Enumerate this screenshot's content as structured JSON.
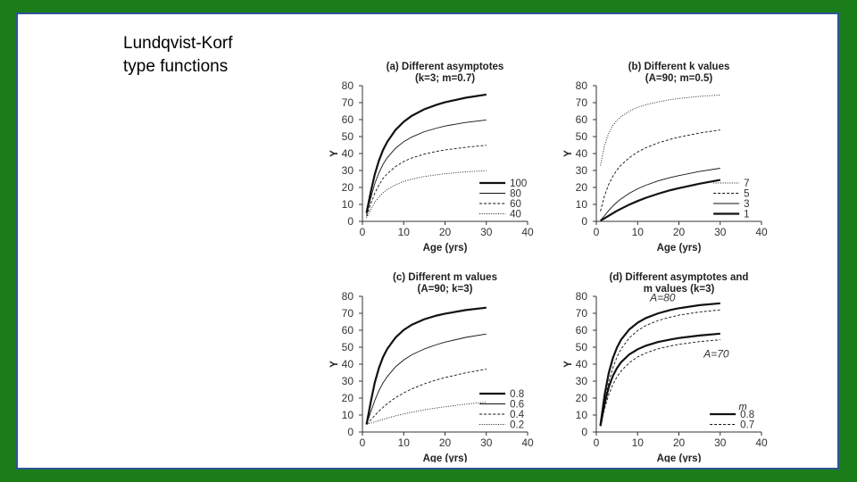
{
  "slide": {
    "title_line1": "Lundqvist-Korf",
    "title_line2": "type functions"
  },
  "chart_data": [
    {
      "type": "line",
      "title_line1": "(a) Different asymptotes",
      "title_line2": "(k=3; m=0.7)",
      "xlabel": "Age (yrs)",
      "ylabel": "Y",
      "xlim": [
        0,
        40
      ],
      "ylim": [
        0,
        80
      ],
      "x_ticks": [
        0,
        10,
        20,
        30,
        40
      ],
      "y_ticks": [
        0,
        10,
        20,
        30,
        40,
        50,
        60,
        70,
        80
      ],
      "grid": false,
      "legend_position": "bottom-right",
      "series": [
        {
          "name": "100",
          "style": "thick",
          "x": [
            1,
            2,
            3,
            4,
            5,
            6,
            8,
            10,
            12,
            15,
            18,
            20,
            25,
            30
          ],
          "y": [
            5,
            17.3,
            27.9,
            35.9,
            42.1,
            46.9,
            53.9,
            58.8,
            62.3,
            66.1,
            68.8,
            70.2,
            72.9,
            74.8
          ]
        },
        {
          "name": "80",
          "style": "solid",
          "x": [
            1,
            2,
            3,
            4,
            5,
            6,
            8,
            10,
            12,
            15,
            18,
            20,
            25,
            30
          ],
          "y": [
            4,
            13.8,
            22.3,
            28.7,
            33.7,
            37.5,
            43.1,
            47,
            49.8,
            52.9,
            55,
            56.2,
            58.3,
            59.8
          ]
        },
        {
          "name": "60",
          "style": "dashed",
          "x": [
            1,
            2,
            3,
            4,
            5,
            6,
            8,
            10,
            12,
            15,
            18,
            20,
            25,
            30
          ],
          "y": [
            3,
            10.4,
            16.7,
            21.5,
            25.3,
            28.1,
            32.3,
            35.3,
            37.4,
            39.7,
            41.3,
            42.1,
            43.7,
            44.9
          ]
        },
        {
          "name": "40",
          "style": "dotted",
          "x": [
            1,
            2,
            3,
            4,
            5,
            6,
            8,
            10,
            12,
            15,
            18,
            20,
            25,
            30
          ],
          "y": [
            2,
            6.9,
            11.2,
            14.4,
            16.9,
            18.8,
            21.6,
            23.5,
            24.9,
            26.5,
            27.5,
            28.1,
            29.2,
            29.9
          ]
        }
      ]
    },
    {
      "type": "line",
      "title_line1": "(b) Different k values",
      "title_line2": "(A=90; m=0.5)",
      "xlabel": "Age (yrs)",
      "ylabel": "Y",
      "xlim": [
        0,
        40
      ],
      "ylim": [
        0,
        80
      ],
      "x_ticks": [
        0,
        10,
        20,
        30,
        40
      ],
      "y_ticks": [
        0,
        10,
        20,
        30,
        40,
        50,
        60,
        70,
        80
      ],
      "grid": false,
      "legend_position": "bottom-right",
      "series": [
        {
          "name": "7",
          "style": "dotted",
          "x": [
            1,
            2,
            3,
            4,
            5,
            6,
            8,
            10,
            12,
            15,
            18,
            20,
            25,
            30
          ],
          "y": [
            33,
            45,
            52,
            56.5,
            59.5,
            61.8,
            65,
            67.2,
            68.8,
            70.5,
            71.8,
            72.5,
            73.7,
            74.5
          ]
        },
        {
          "name": "5",
          "style": "dashed",
          "x": [
            1,
            2,
            3,
            4,
            5,
            6,
            8,
            10,
            12,
            15,
            18,
            20,
            25,
            30
          ],
          "y": [
            6,
            15.3,
            21.9,
            26.6,
            30.3,
            33.2,
            37.6,
            40.9,
            43.4,
            46.3,
            48.5,
            49.7,
            52.1,
            53.9
          ]
        },
        {
          "name": "3",
          "style": "solid",
          "x": [
            1,
            2,
            3,
            4,
            5,
            6,
            8,
            10,
            12,
            15,
            18,
            20,
            25,
            30
          ],
          "y": [
            0.5,
            3.4,
            6.4,
            9,
            11.3,
            13.3,
            16.6,
            19.2,
            21.3,
            23.9,
            25.9,
            27,
            29.4,
            31.3
          ]
        },
        {
          "name": "1",
          "style": "thick",
          "x": [
            1,
            2,
            3,
            4,
            5,
            6,
            8,
            10,
            12,
            15,
            18,
            20,
            25,
            30
          ],
          "y": [
            0.4,
            1.8,
            3.3,
            4.8,
            6.2,
            7.5,
            9.9,
            12,
            13.9,
            16.3,
            18.4,
            19.6,
            22.2,
            24.4
          ]
        }
      ]
    },
    {
      "type": "line",
      "title_line1": "(c) Different m values",
      "title_line2": "(A=90; k=3)",
      "xlabel": "Age (yrs)",
      "ylabel": "Y",
      "xlim": [
        0,
        40
      ],
      "ylim": [
        0,
        80
      ],
      "x_ticks": [
        0,
        10,
        20,
        30,
        40
      ],
      "y_ticks": [
        0,
        10,
        20,
        30,
        40,
        50,
        60,
        70,
        80
      ],
      "grid": false,
      "legend_position": "bottom-right",
      "series": [
        {
          "name": "0.8",
          "style": "thick",
          "x": [
            1,
            2,
            3,
            4,
            5,
            6,
            8,
            10,
            12,
            15,
            18,
            20,
            25,
            30
          ],
          "y": [
            4.5,
            17.7,
            29.3,
            37.8,
            44.2,
            49,
            55.7,
            60.2,
            63.3,
            66.5,
            68.7,
            69.8,
            71.9,
            73.3
          ]
        },
        {
          "name": "0.6",
          "style": "solid",
          "x": [
            1,
            2,
            3,
            4,
            5,
            6,
            8,
            10,
            12,
            15,
            18,
            20,
            25,
            30
          ],
          "y": [
            4.5,
            11.8,
            18.7,
            24.4,
            29,
            32.7,
            38.4,
            42.5,
            45.6,
            49,
            51.6,
            53,
            55.8,
            57.8
          ]
        },
        {
          "name": "0.4",
          "style": "dashed",
          "x": [
            1,
            2,
            3,
            4,
            5,
            6,
            8,
            10,
            12,
            15,
            18,
            20,
            25,
            30
          ],
          "y": [
            4.5,
            7.1,
            9.8,
            12.3,
            14.6,
            16.7,
            20.2,
            23.1,
            25.5,
            28.4,
            30.8,
            32.1,
            34.9,
            37.1
          ]
        },
        {
          "name": "0.2",
          "style": "dotted",
          "x": [
            1,
            2,
            3,
            4,
            5,
            6,
            8,
            10,
            12,
            15,
            18,
            20,
            25,
            30
          ],
          "y": [
            4.5,
            5.2,
            6,
            6.7,
            7.5,
            8.2,
            9.5,
            10.7,
            11.7,
            13.1,
            14.2,
            14.9,
            16.4,
            17.6
          ]
        }
      ]
    },
    {
      "type": "line",
      "title_line1": "(d) Different asymptotes and",
      "title_line2": "m values (k=3)",
      "xlabel": "Age (yrs)",
      "ylabel": "Y",
      "xlim": [
        0,
        40
      ],
      "ylim": [
        0,
        80
      ],
      "x_ticks": [
        0,
        10,
        20,
        30,
        40
      ],
      "y_ticks": [
        0,
        10,
        20,
        30,
        40,
        50,
        60,
        70,
        80
      ],
      "grid": false,
      "legend_title": "m",
      "legend_position": "bottom-right",
      "annotations": [
        {
          "text": "A=80",
          "x": 13,
          "y": 77
        },
        {
          "text": "A=70",
          "x": 26,
          "y": 44
        }
      ],
      "series": [
        {
          "name": "0.8",
          "style": "thick",
          "group": "A=80",
          "x": [
            1,
            2,
            3,
            4,
            5,
            6,
            8,
            10,
            12,
            15,
            18,
            20,
            25,
            30
          ],
          "y": [
            4,
            22,
            34.8,
            43.5,
            49.8,
            54.5,
            60.5,
            64.5,
            67.2,
            70,
            72,
            73,
            74.8,
            75.9
          ]
        },
        {
          "name": "0.7",
          "style": "dashed",
          "group": "A=80",
          "x": [
            1,
            2,
            3,
            4,
            5,
            6,
            8,
            10,
            12,
            15,
            18,
            20,
            25,
            30
          ],
          "y": [
            4,
            18,
            29.5,
            37.8,
            44.2,
            49,
            55.5,
            59.8,
            62.8,
            65.8,
            67.8,
            68.9,
            70.8,
            72
          ]
        },
        {
          "name": "0.8",
          "style": "thick",
          "group": "A=70",
          "x": [
            1,
            2,
            3,
            4,
            5,
            6,
            8,
            10,
            12,
            15,
            18,
            20,
            25,
            30
          ],
          "y": [
            3.5,
            16.8,
            26.4,
            33,
            37.7,
            41.2,
            45.8,
            48.8,
            50.9,
            53.1,
            54.6,
            55.4,
            56.9,
            58
          ]
        },
        {
          "name": "0.7",
          "style": "dashed",
          "group": "A=70",
          "x": [
            1,
            2,
            3,
            4,
            5,
            6,
            8,
            10,
            12,
            15,
            18,
            20,
            25,
            30
          ],
          "y": [
            3.5,
            13.9,
            22,
            28,
            32.5,
            36,
            40.9,
            44.3,
            46.6,
            49.1,
            50.8,
            51.7,
            53.3,
            54.4
          ]
        }
      ]
    }
  ]
}
